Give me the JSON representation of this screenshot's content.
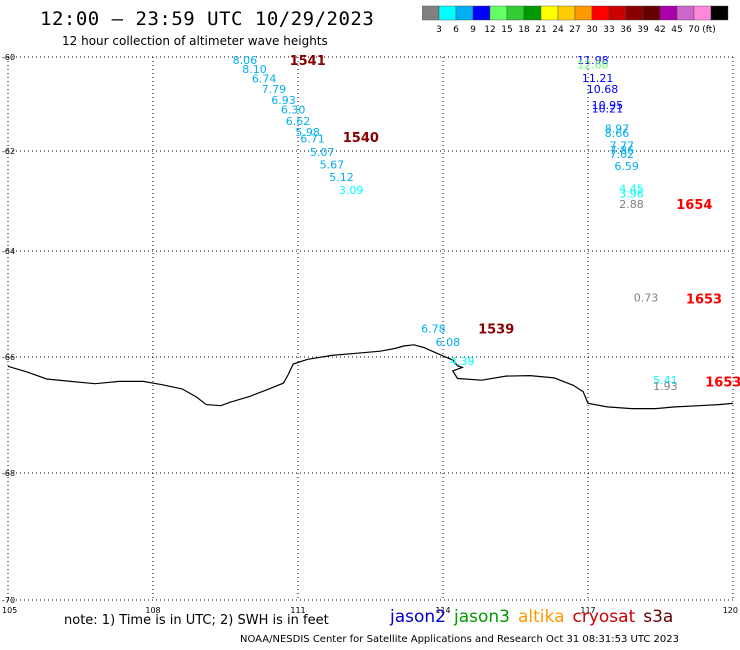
{
  "header": {
    "title": "12:00 – 23:59 UTC 10/29/2023",
    "subtitle": "12 hour collection of altimeter wave heights"
  },
  "color_scale": {
    "colors": [
      "#808080",
      "#00ffff",
      "#00b0f0",
      "#0000ff",
      "#66ff66",
      "#33cc33",
      "#009900",
      "#ffff00",
      "#ffcc00",
      "#ff9900",
      "#ff0000",
      "#cc0000",
      "#880000",
      "#660000",
      "#aa00aa",
      "#cc66cc",
      "#ff88dd",
      "#000000"
    ],
    "labels": [
      "3",
      "6",
      "9",
      "12",
      "15",
      "18",
      "21",
      "24",
      "27",
      "30",
      "33",
      "36",
      "39",
      "42",
      "45",
      "70"
    ],
    "unit": "(ft)"
  },
  "map": {
    "lat_labels": [
      "-60",
      "-62",
      "-64",
      "-66",
      "-68",
      "-70"
    ],
    "lon_labels": [
      "105",
      "108",
      "111",
      "114",
      "117",
      "120"
    ]
  },
  "observations": [
    {
      "text": "8.06",
      "lon": 109.9,
      "lat": -60.06,
      "color": "#00b0f0"
    },
    {
      "text": "8.10",
      "lon": 110.1,
      "lat": -60.26,
      "color": "#00b0f0"
    },
    {
      "text": "6.74",
      "lon": 110.3,
      "lat": -60.46,
      "color": "#00b0f0"
    },
    {
      "text": "7.79",
      "lon": 110.5,
      "lat": -60.68,
      "color": "#00b0f0"
    },
    {
      "text": "6.93",
      "lon": 110.7,
      "lat": -60.91,
      "color": "#00b0f0"
    },
    {
      "text": "6.30",
      "lon": 110.9,
      "lat": -61.12,
      "color": "#00b0f0"
    },
    {
      "text": "6.62",
      "lon": 111.0,
      "lat": -61.36,
      "color": "#00b0f0"
    },
    {
      "text": "5.98",
      "lon": 111.2,
      "lat": -61.6,
      "color": "#00b0f0"
    },
    {
      "text": "6.71",
      "lon": 111.3,
      "lat": -61.73,
      "color": "#00b0f0"
    },
    {
      "text": "5.07",
      "lon": 111.5,
      "lat": -62.02,
      "color": "#00b0f0"
    },
    {
      "text": "5.67",
      "lon": 111.7,
      "lat": -62.27,
      "color": "#00b0f0"
    },
    {
      "text": "5.12",
      "lon": 111.9,
      "lat": -62.52,
      "color": "#00b0f0"
    },
    {
      "text": "3.09",
      "lon": 112.1,
      "lat": -62.78,
      "color": "#00ffff"
    },
    {
      "text": "11.98",
      "lon": 117.1,
      "lat": -60.06,
      "color": "#0000ff"
    },
    {
      "text": "12.60",
      "lon": 117.1,
      "lat": -60.16,
      "color": "#66ff66"
    },
    {
      "text": "11.21",
      "lon": 117.2,
      "lat": -60.45,
      "color": "#0000ff"
    },
    {
      "text": "10.68",
      "lon": 117.3,
      "lat": -60.68,
      "color": "#0000ff"
    },
    {
      "text": "10.95",
      "lon": 117.4,
      "lat": -61.02,
      "color": "#0000ff"
    },
    {
      "text": "10.21",
      "lon": 117.4,
      "lat": -61.1,
      "color": "#0000ff"
    },
    {
      "text": "8.97",
      "lon": 117.6,
      "lat": -61.52,
      "color": "#00b0f0"
    },
    {
      "text": "8.66",
      "lon": 117.6,
      "lat": -61.62,
      "color": "#00b0f0"
    },
    {
      "text": "7.77",
      "lon": 117.7,
      "lat": -61.88,
      "color": "#00b0f0"
    },
    {
      "text": "7.86",
      "lon": 117.7,
      "lat": -61.98,
      "color": "#00b0f0"
    },
    {
      "text": "7.02",
      "lon": 117.7,
      "lat": -62.06,
      "color": "#00b0f0"
    },
    {
      "text": "6.59",
      "lon": 117.8,
      "lat": -62.3,
      "color": "#00b0f0"
    },
    {
      "text": "4.45",
      "lon": 117.9,
      "lat": -62.75,
      "color": "#00ffff"
    },
    {
      "text": "3.96",
      "lon": 117.9,
      "lat": -62.85,
      "color": "#00ffff"
    },
    {
      "text": "2.88",
      "lon": 117.9,
      "lat": -63.06,
      "color": "#808080"
    },
    {
      "text": "0.73",
      "lon": 118.2,
      "lat": -64.88,
      "color": "#808080"
    },
    {
      "text": "6.78",
      "lon": 113.8,
      "lat": -65.46,
      "color": "#00b0f0"
    },
    {
      "text": "6.08",
      "lon": 114.1,
      "lat": -65.72,
      "color": "#00b0f0"
    },
    {
      "text": "4.39",
      "lon": 114.4,
      "lat": -66.07,
      "color": "#00ffff"
    },
    {
      "text": "5.41",
      "lon": 118.6,
      "lat": -66.4,
      "color": "#00ffff"
    },
    {
      "text": "1.93",
      "lon": 118.6,
      "lat": -66.5,
      "color": "#808080"
    }
  ],
  "times": [
    {
      "text": "1541",
      "lon": 111.2,
      "lat": -60.06,
      "color": "#880000"
    },
    {
      "text": "1540",
      "lon": 112.3,
      "lat": -61.7,
      "color": "#880000"
    },
    {
      "text": "1654",
      "lon": 119.2,
      "lat": -63.06,
      "color": "#ff0000"
    },
    {
      "text": "1653",
      "lon": 119.4,
      "lat": -64.9,
      "color": "#ff0000"
    },
    {
      "text": "1539",
      "lon": 115.1,
      "lat": -65.46,
      "color": "#880000"
    },
    {
      "text": "1653",
      "lon": 119.8,
      "lat": -66.42,
      "color": "#ff0000"
    }
  ],
  "coastline": [
    [
      105.0,
      -66.16
    ],
    [
      105.4,
      -66.26
    ],
    [
      105.8,
      -66.38
    ],
    [
      106.3,
      -66.42
    ],
    [
      106.8,
      -66.46
    ],
    [
      107.3,
      -66.42
    ],
    [
      107.8,
      -66.42
    ],
    [
      108.2,
      -66.48
    ],
    [
      108.6,
      -66.55
    ],
    [
      108.9,
      -66.69
    ],
    [
      109.1,
      -66.82
    ],
    [
      109.4,
      -66.84
    ],
    [
      109.6,
      -66.78
    ],
    [
      110.0,
      -66.68
    ],
    [
      110.4,
      -66.55
    ],
    [
      110.7,
      -66.45
    ],
    [
      110.8,
      -66.3
    ],
    [
      110.9,
      -66.12
    ],
    [
      111.2,
      -66.04
    ],
    [
      111.7,
      -65.97
    ],
    [
      112.2,
      -65.93
    ],
    [
      112.7,
      -65.89
    ],
    [
      113.0,
      -65.84
    ],
    [
      113.2,
      -65.79
    ],
    [
      113.4,
      -65.77
    ],
    [
      113.6,
      -65.82
    ],
    [
      113.8,
      -65.9
    ],
    [
      114.0,
      -65.98
    ],
    [
      114.2,
      -66.05
    ],
    [
      114.3,
      -66.15
    ],
    [
      114.4,
      -66.18
    ],
    [
      114.2,
      -66.24
    ],
    [
      114.3,
      -66.37
    ],
    [
      114.8,
      -66.4
    ],
    [
      115.3,
      -66.33
    ],
    [
      115.8,
      -66.32
    ],
    [
      116.3,
      -66.36
    ],
    [
      116.7,
      -66.49
    ],
    [
      116.9,
      -66.6
    ],
    [
      117.0,
      -66.8
    ],
    [
      117.4,
      -66.86
    ],
    [
      117.9,
      -66.89
    ],
    [
      118.4,
      -66.89
    ],
    [
      118.8,
      -66.86
    ],
    [
      119.3,
      -66.84
    ],
    [
      119.7,
      -66.82
    ],
    [
      120.0,
      -66.8
    ]
  ],
  "legend": {
    "note": "note: 1) Time is in UTC; 2) SWH is in feet",
    "items": [
      {
        "label": "jason2",
        "color": "#0000cc"
      },
      {
        "label": "jason3",
        "color": "#009900"
      },
      {
        "label": "altika",
        "color": "#ff9900"
      },
      {
        "label": "cryosat",
        "color": "#cc0000"
      },
      {
        "label": "s3a",
        "color": "#660000"
      }
    ],
    "credit": "NOAA/NESDIS Center for Satellite Applications and Research   Oct 31 08:31:53 UTC 2023"
  }
}
